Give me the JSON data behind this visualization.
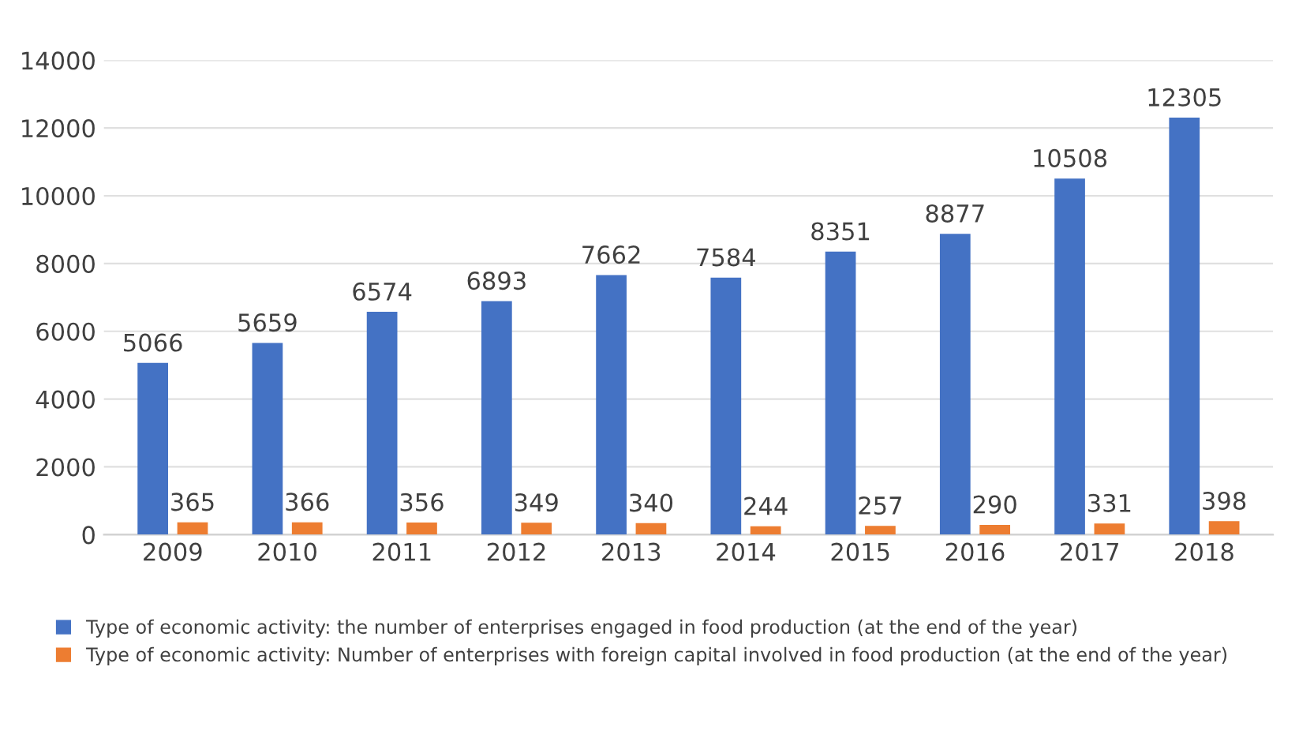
{
  "chart_data": {
    "type": "bar",
    "categories": [
      "2009",
      "2010",
      "2011",
      "2012",
      "2013",
      "2014",
      "2015",
      "2016",
      "2017",
      "2018"
    ],
    "series": [
      {
        "name": "Type of economic activity: the number of enterprises engaged in food production (at the end of the year)",
        "color": "#4472c4",
        "values": [
          5066,
          5659,
          6574,
          6893,
          7662,
          7584,
          8351,
          8877,
          10508,
          12305
        ]
      },
      {
        "name": "Type of economic activity: Number of enterprises with foreign capital involved in food production (at the end of the year)",
        "color": "#ed7d31",
        "values": [
          365,
          366,
          356,
          349,
          340,
          244,
          257,
          290,
          331,
          398
        ]
      }
    ],
    "ylim": [
      0,
      14000
    ],
    "yticks": [
      0,
      2000,
      4000,
      6000,
      8000,
      10000,
      12000,
      14000
    ],
    "grid": "y",
    "legend": "bottom",
    "data_labels": true
  }
}
